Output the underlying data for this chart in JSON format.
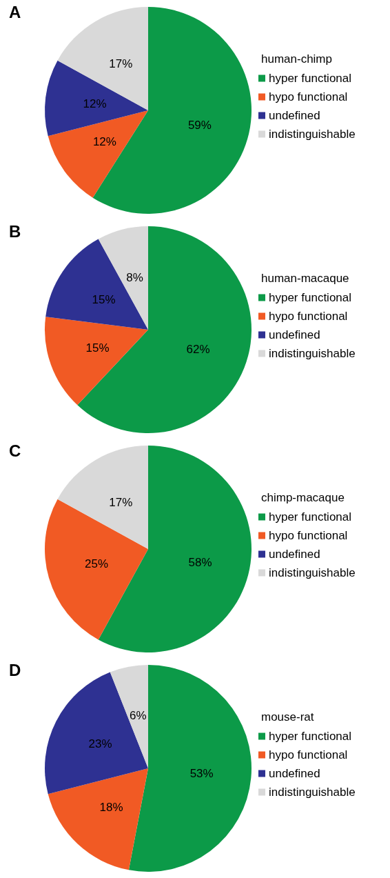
{
  "chart_data": [
    {
      "type": "pie",
      "title": "A",
      "legend_title": "human-chimp",
      "categories": [
        "hyper functional",
        "hypo functional",
        "undefined",
        "indistinguishable"
      ],
      "values": [
        59,
        12,
        12,
        17
      ],
      "value_labels": [
        "59%",
        "12%",
        "12%",
        "17%"
      ],
      "colors": [
        "#0c9a48",
        "#f15a24",
        "#2e3192",
        "#d9d9d9"
      ],
      "legend": "right"
    },
    {
      "type": "pie",
      "title": "B",
      "legend_title": "human-macaque",
      "categories": [
        "hyper functional",
        "hypo functional",
        "undefined",
        "indistinguishable"
      ],
      "values": [
        62,
        15,
        15,
        8
      ],
      "value_labels": [
        "62%",
        "15%",
        "15%",
        "8%"
      ],
      "colors": [
        "#0c9a48",
        "#f15a24",
        "#2e3192",
        "#d9d9d9"
      ],
      "legend": "right"
    },
    {
      "type": "pie",
      "title": "C",
      "legend_title": "chimp-macaque",
      "categories": [
        "hyper functional",
        "hypo functional",
        "undefined",
        "indistinguishable"
      ],
      "values": [
        58,
        25,
        0,
        17
      ],
      "value_labels": [
        "58%",
        "25%",
        null,
        "17%"
      ],
      "colors": [
        "#0c9a48",
        "#f15a24",
        "#2e3192",
        "#d9d9d9"
      ],
      "legend": "right"
    },
    {
      "type": "pie",
      "title": "D",
      "legend_title": "mouse-rat",
      "categories": [
        "hyper functional",
        "hypo functional",
        "undefined",
        "indistinguishable"
      ],
      "values": [
        53,
        18,
        23,
        6
      ],
      "value_labels": [
        "53%",
        "18%",
        "23%",
        "6%"
      ],
      "colors": [
        "#0c9a48",
        "#f15a24",
        "#2e3192",
        "#d9d9d9"
      ],
      "legend": "right"
    }
  ]
}
